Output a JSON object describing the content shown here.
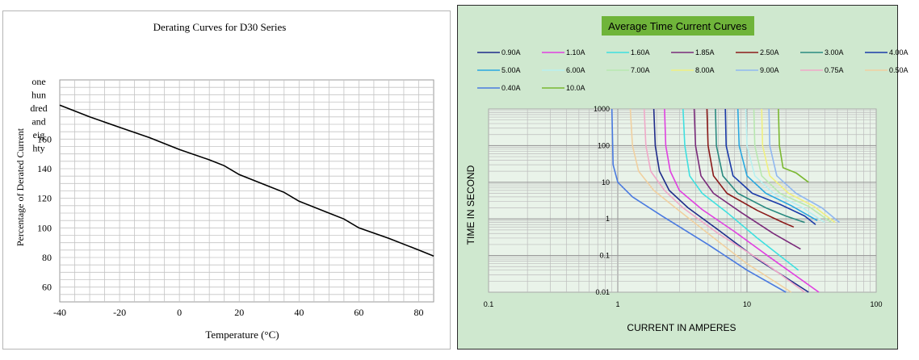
{
  "derating": {
    "chart_data": {
      "type": "line",
      "title": "Derating Curves for D30 Series",
      "xlabel": "Temperature (°C)",
      "ylabel": "Percentage of Derated Current",
      "xlim": [
        -40,
        85
      ],
      "ylim": [
        50,
        200
      ],
      "x_ticks": [
        "-40",
        "-20",
        "0",
        "20",
        "40",
        "60",
        "80"
      ],
      "y_tick_values": [
        60,
        80,
        100,
        120,
        140,
        160
      ],
      "y_tick_labels": [
        "60",
        "80",
        "100",
        "120",
        "140",
        "160"
      ],
      "y_top_label_lines": [
        "one",
        "hun",
        "dred",
        "and",
        "eig",
        "hty"
      ],
      "grid": true,
      "series": [
        {
          "x": [
            -40,
            -30,
            -20,
            -10,
            0,
            10,
            15,
            20,
            30,
            35,
            40,
            50,
            55,
            60,
            70,
            80,
            85
          ],
          "y": [
            183,
            175,
            168,
            161,
            153,
            146,
            142,
            136,
            128,
            124,
            118,
            110,
            106,
            100,
            93,
            85,
            81
          ]
        }
      ]
    }
  },
  "tcc": {
    "chart_data": {
      "type": "line",
      "title": "Average Time Current Curves",
      "xlabel": "CURRENT IN AMPERES",
      "ylabel": "TIME IN SECOND",
      "x_scale": "log",
      "y_scale": "log",
      "xlim": [
        0.1,
        100
      ],
      "ylim": [
        0.01,
        1000
      ],
      "x_tick_labels": [
        "0.1",
        "1",
        "10",
        "100"
      ],
      "y_tick_labels": [
        "0.01",
        "0.1",
        "1",
        "10",
        "100",
        "1000"
      ],
      "grid": true,
      "legend_placement": "top",
      "series": [
        {
          "name": "0.90A",
          "color": "#1f2b8a",
          "x": [
            1.9,
            1.95,
            2.1,
            2.5,
            3.5,
            6,
            12,
            30
          ],
          "y": [
            1000,
            100,
            20,
            6,
            2,
            0.5,
            0.08,
            0.01
          ]
        },
        {
          "name": "1.10A",
          "color": "#e040e0",
          "x": [
            2.3,
            2.35,
            2.55,
            3,
            4.5,
            8,
            15,
            36
          ],
          "y": [
            1000,
            100,
            20,
            6,
            1.8,
            0.45,
            0.09,
            0.01
          ]
        },
        {
          "name": "1.60A",
          "color": "#3ee0e0",
          "x": [
            3.2,
            3.3,
            3.6,
            4.5,
            7,
            12,
            25
          ],
          "y": [
            1000,
            100,
            15,
            5,
            1.5,
            0.3,
            0.04
          ]
        },
        {
          "name": "1.85A",
          "color": "#7a2a7a",
          "x": [
            3.9,
            4.0,
            4.4,
            5.5,
            9,
            16,
            26
          ],
          "y": [
            1000,
            100,
            15,
            5,
            1.5,
            0.4,
            0.15
          ]
        },
        {
          "name": "2.50A",
          "color": "#8b1a1a",
          "x": [
            4.9,
            5.0,
            5.5,
            7,
            12,
            19,
            23
          ],
          "y": [
            1000,
            100,
            15,
            5,
            1.7,
            0.8,
            0.6
          ]
        },
        {
          "name": "3.00A",
          "color": "#2a8a80",
          "x": [
            5.7,
            5.8,
            6.5,
            8.5,
            14,
            20,
            28
          ],
          "y": [
            1000,
            100,
            15,
            5,
            2,
            1.2,
            0.8
          ]
        },
        {
          "name": "4.00A",
          "color": "#1a3aa8",
          "x": [
            6.8,
            6.9,
            7.8,
            11,
            18,
            28,
            34
          ],
          "y": [
            1000,
            100,
            15,
            5,
            2.5,
            1.2,
            0.7
          ]
        },
        {
          "name": "5.00A",
          "color": "#2aa8e0",
          "x": [
            8.5,
            8.7,
            10,
            14,
            22,
            35
          ],
          "y": [
            1000,
            100,
            15,
            5,
            2.3,
            0.9
          ]
        },
        {
          "name": "6.00A",
          "color": "#b8f0f0",
          "x": [
            9.8,
            10.0,
            11.5,
            16,
            26,
            40
          ],
          "y": [
            1000,
            100,
            15,
            5,
            2.2,
            0.8
          ]
        },
        {
          "name": "7.00A",
          "color": "#b8e8b0",
          "x": [
            11.3,
            11.5,
            13,
            18,
            30,
            45
          ],
          "y": [
            1000,
            100,
            15,
            5,
            2.2,
            0.8
          ]
        },
        {
          "name": "8.00A",
          "color": "#f0f080",
          "x": [
            13.0,
            13.2,
            15,
            21,
            33,
            48
          ],
          "y": [
            1000,
            100,
            15,
            5,
            2.2,
            0.8
          ]
        },
        {
          "name": "9.00A",
          "color": "#90b8f0",
          "x": [
            14.8,
            15.0,
            17,
            24,
            38,
            52
          ],
          "y": [
            1000,
            100,
            15,
            5,
            2.0,
            0.8
          ]
        },
        {
          "name": "0.75A",
          "color": "#f0a8c8",
          "x": [
            1.6,
            1.65,
            1.8,
            2.3,
            3.2,
            6,
            14,
            28
          ],
          "y": [
            1000,
            100,
            20,
            6,
            2,
            0.4,
            0.06,
            0.01
          ]
        },
        {
          "name": "0.50A",
          "color": "#f0d0a0",
          "x": [
            1.25,
            1.3,
            1.45,
            1.9,
            2.8,
            5,
            10,
            22
          ],
          "y": [
            1000,
            100,
            20,
            6,
            2,
            0.4,
            0.06,
            0.01
          ]
        },
        {
          "name": "0.40A",
          "color": "#4a7ae0",
          "x": [
            0.9,
            0.92,
            1.0,
            1.3,
            2.2,
            5,
            10,
            20
          ],
          "y": [
            1000,
            30,
            10,
            4,
            1.2,
            0.2,
            0.04,
            0.01
          ]
        },
        {
          "name": "10.0A",
          "color": "#7ab830",
          "x": [
            17.5,
            17.8,
            19,
            24,
            30
          ],
          "y": [
            1000,
            100,
            25,
            18,
            10
          ]
        }
      ]
    }
  }
}
